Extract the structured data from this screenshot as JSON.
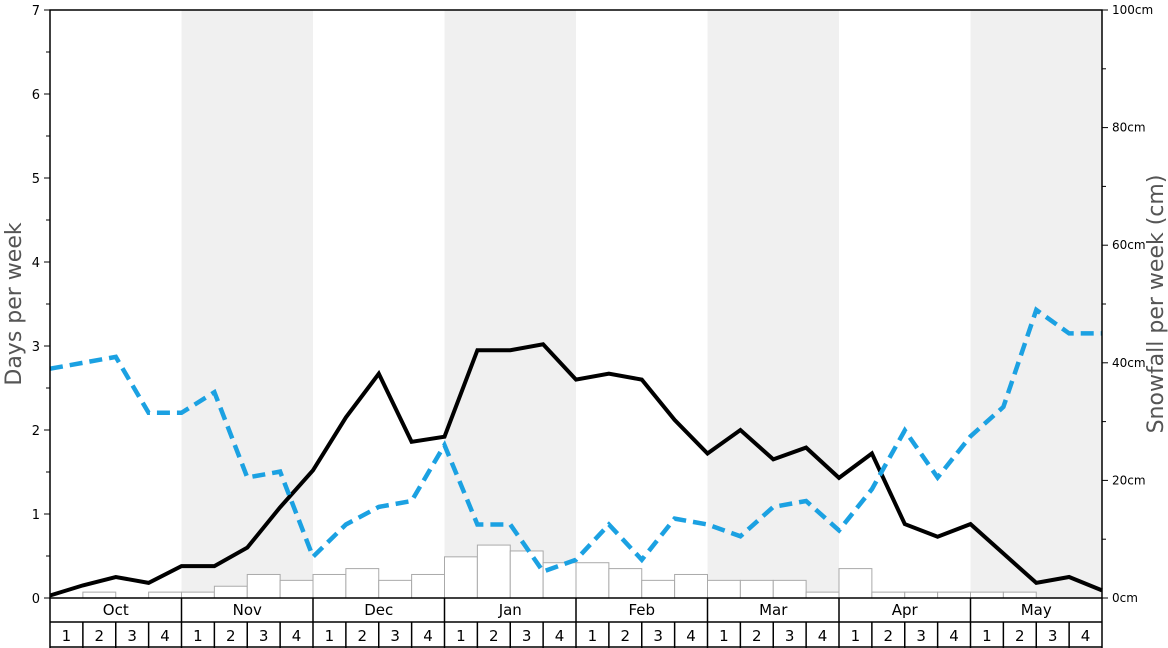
{
  "chart_data": {
    "type": "line",
    "ylabel_left": "Days per week",
    "ylabel_right": "Snowfall per week (cm)",
    "ylim_left": [
      0,
      7
    ],
    "ylim_right": [
      0,
      100
    ],
    "left_ticks": [
      "0",
      "1",
      "2",
      "3",
      "4",
      "5",
      "6",
      "7"
    ],
    "right_ticks": [
      "0cm",
      "20cm",
      "40cm",
      "60cm",
      "80cm",
      "100cm"
    ],
    "months": [
      "Oct",
      "Nov",
      "Dec",
      "Jan",
      "Feb",
      "Mar",
      "Apr",
      "May"
    ],
    "week_labels": [
      "1",
      "2",
      "3",
      "4"
    ],
    "shaded_months": [
      "Nov",
      "Jan",
      "Mar",
      "May"
    ],
    "grid": false,
    "series": [
      {
        "style": "solid",
        "color": "#000000",
        "axis": "left",
        "values": [
          0.03,
          0.15,
          0.25,
          0.18,
          0.38,
          0.38,
          0.6,
          1.08,
          1.52,
          2.15,
          2.67,
          1.86,
          1.92,
          2.95,
          2.95,
          3.02,
          2.6,
          2.67,
          2.6,
          2.12,
          1.72,
          2.0,
          1.65,
          1.79,
          1.43,
          1.72,
          0.88,
          0.73,
          0.88,
          0.53,
          0.18,
          0.25,
          0.09
        ]
      },
      {
        "style": "dashed",
        "color": "#1ba1e2",
        "axis": "right",
        "values": [
          39,
          40,
          41,
          31.5,
          31.5,
          35,
          20.5,
          21.5,
          7,
          12.5,
          15.5,
          16.5,
          26,
          12.5,
          12.5,
          4.5,
          6.5,
          12.5,
          6.5,
          13.5,
          12.5,
          10.5,
          15.5,
          16.5,
          11.5,
          18.5,
          28.5,
          20.5,
          27.5,
          32.5,
          49,
          45,
          45
        ]
      },
      {
        "style": "bar",
        "color": "#ffffff",
        "axis": "left",
        "values": [
          0,
          0.07,
          0,
          0.07,
          0.07,
          0.14,
          0.28,
          0.21,
          0.28,
          0.35,
          0.21,
          0.28,
          0.49,
          0.63,
          0.56,
          0.42,
          0.42,
          0.35,
          0.21,
          0.28,
          0.21,
          0.21,
          0.21,
          0.07,
          0.35,
          0.07,
          0.07,
          0.07,
          0.07,
          0.07,
          0,
          0
        ]
      }
    ]
  },
  "colors": {
    "shade": "#f0f0f0",
    "snowfall_line": "#1ba1e2",
    "days_line": "#000000",
    "axis_title": "#555555",
    "bar_stroke": "#aaaaaa"
  }
}
